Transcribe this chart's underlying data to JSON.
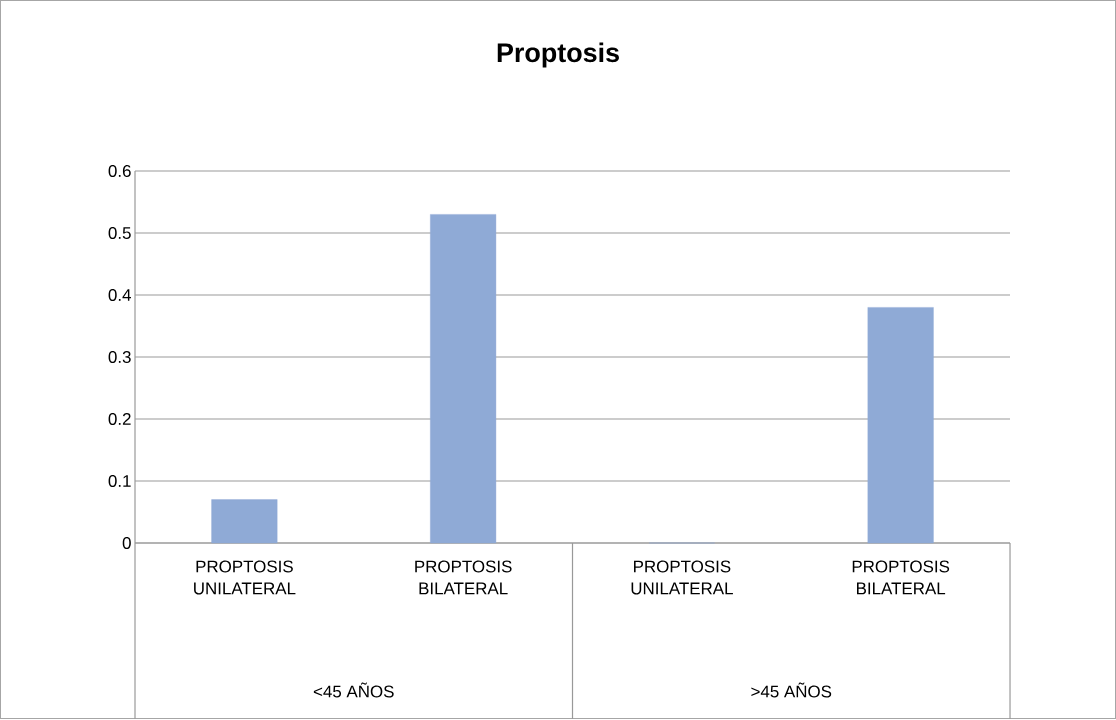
{
  "chart_data": {
    "type": "bar",
    "title": "Proptosis",
    "categories": [
      "PROPTOSIS UNILATERAL",
      "PROPTOSIS BILATERAL",
      "PROPTOSIS UNILATERAL",
      "PROPTOSIS BILATERAL"
    ],
    "values": [
      0.07,
      0.53,
      0,
      0.38
    ],
    "color": "#8faad6",
    "ylim": [
      0,
      0.6
    ],
    "yticks": [
      0,
      0.1,
      0.2,
      0.3,
      0.4,
      0.5,
      0.6
    ],
    "grid": "y",
    "annotations": [
      "<45 AÑOS",
      ">45 AÑOS"
    ]
  }
}
